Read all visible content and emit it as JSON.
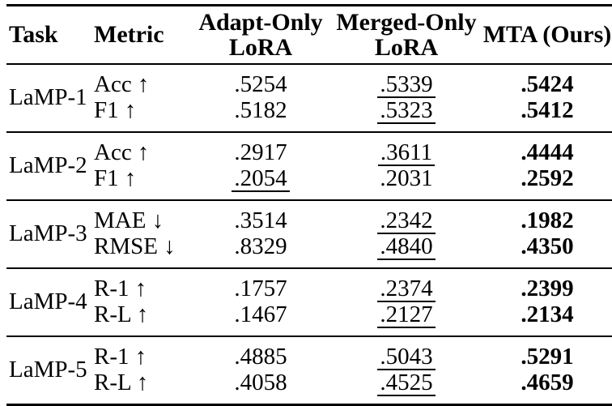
{
  "page": {
    "background_color": "#ffffff",
    "text_color": "#000000"
  },
  "table": {
    "headers": {
      "task": "Task",
      "metric": "Metric",
      "adapt_line1": "Adapt-Only",
      "adapt_line2": "LoRA",
      "merged_line1": "Merged-Only",
      "merged_line2": "LoRA",
      "mta": "MTA (Ours)"
    },
    "sections": [
      {
        "task": "LaMP-1",
        "rows": [
          {
            "metric": "Acc ↑",
            "adapt": {
              "text": ".5254",
              "underline": false
            },
            "merged": {
              "text": ".5339",
              "underline": true
            },
            "mta": {
              "text": ".5424",
              "bold": true
            }
          },
          {
            "metric": "F1 ↑",
            "adapt": {
              "text": ".5182",
              "underline": false
            },
            "merged": {
              "text": ".5323",
              "underline": true
            },
            "mta": {
              "text": ".5412",
              "bold": true
            }
          }
        ]
      },
      {
        "task": "LaMP-2",
        "rows": [
          {
            "metric": "Acc ↑",
            "adapt": {
              "text": ".2917",
              "underline": false
            },
            "merged": {
              "text": ".3611",
              "underline": true
            },
            "mta": {
              "text": ".4444",
              "bold": true
            }
          },
          {
            "metric": "F1 ↑",
            "adapt": {
              "text": ".2054",
              "underline": true
            },
            "merged": {
              "text": ".2031",
              "underline": false
            },
            "mta": {
              "text": ".2592",
              "bold": true
            }
          }
        ]
      },
      {
        "task": "LaMP-3",
        "rows": [
          {
            "metric": "MAE ↓",
            "adapt": {
              "text": ".3514",
              "underline": false
            },
            "merged": {
              "text": ".2342",
              "underline": true
            },
            "mta": {
              "text": ".1982",
              "bold": true
            }
          },
          {
            "metric": "RMSE ↓",
            "adapt": {
              "text": ".8329",
              "underline": false
            },
            "merged": {
              "text": ".4840",
              "underline": true
            },
            "mta": {
              "text": ".4350",
              "bold": true
            }
          }
        ]
      },
      {
        "task": "LaMP-4",
        "rows": [
          {
            "metric": "R-1 ↑",
            "adapt": {
              "text": ".1757",
              "underline": false
            },
            "merged": {
              "text": ".2374",
              "underline": true
            },
            "mta": {
              "text": ".2399",
              "bold": true
            }
          },
          {
            "metric": "R-L ↑",
            "adapt": {
              "text": ".1467",
              "underline": false
            },
            "merged": {
              "text": ".2127",
              "underline": true
            },
            "mta": {
              "text": ".2134",
              "bold": true
            }
          }
        ]
      },
      {
        "task": "LaMP-5",
        "rows": [
          {
            "metric": "R-1 ↑",
            "adapt": {
              "text": ".4885",
              "underline": false
            },
            "merged": {
              "text": ".5043",
              "underline": true
            },
            "mta": {
              "text": ".5291",
              "bold": true
            }
          },
          {
            "metric": "R-L ↑",
            "adapt": {
              "text": ".4058",
              "underline": false
            },
            "merged": {
              "text": ".4525",
              "underline": true
            },
            "mta": {
              "text": ".4659",
              "bold": true
            }
          }
        ]
      }
    ]
  }
}
